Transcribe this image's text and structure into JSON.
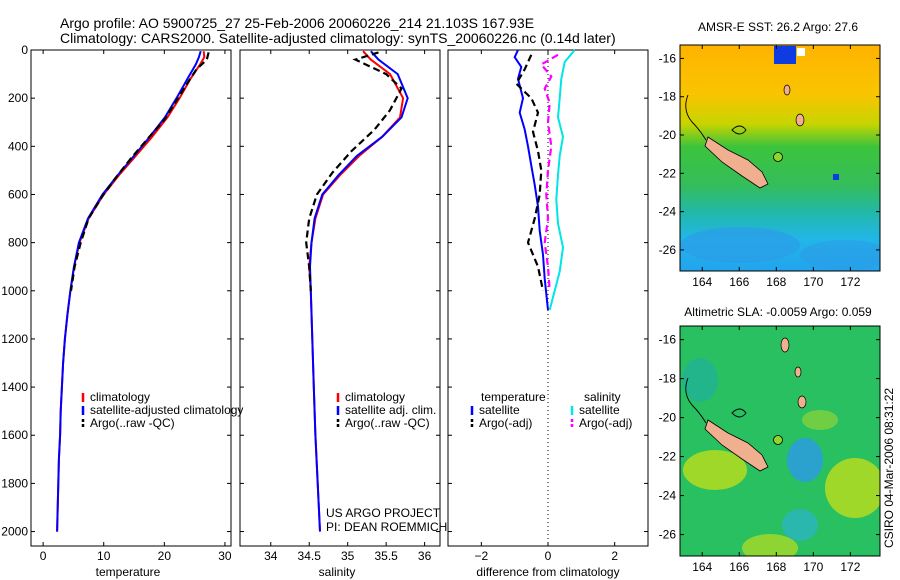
{
  "title": {
    "line1": "Argo profile: AO 5900725_27 25-Feb-2006 20060226_214 21.103S 167.93E",
    "line2": "Climatology: CARS2000. Satellite-adjusted climatology: synTS_20060226.nc (0.14d later)"
  },
  "credits": {
    "project": "US ARGO PROJECT",
    "pi": "PI: DEAN ROEMMICH"
  },
  "side_stamp": "CSIRO 04-Mar-2006 08:31:22",
  "chart_data": [
    {
      "type": "line",
      "id": "temperature",
      "xlabel": "temperature",
      "xlim": [
        -2,
        31
      ],
      "ylim": [
        2060,
        0
      ],
      "xticks": [
        0,
        10,
        20,
        30
      ],
      "yticks": [
        0,
        200,
        400,
        600,
        800,
        1000,
        1200,
        1400,
        1600,
        1800,
        2000
      ],
      "legend": [
        "climatology",
        "satellite-adjusted climatology",
        "Argo(..raw -QC)"
      ],
      "series": [
        {
          "name": "climatology",
          "color": "#ff0000",
          "style": "solid",
          "points": [
            [
              26.5,
              5
            ],
            [
              26.6,
              30
            ],
            [
              25.9,
              60
            ],
            [
              24.3,
              120
            ],
            [
              22.5,
              200
            ],
            [
              20.5,
              280
            ],
            [
              18.0,
              360
            ],
            [
              15.3,
              440
            ],
            [
              12.5,
              520
            ],
            [
              10.0,
              600
            ],
            [
              7.5,
              700
            ],
            [
              6.0,
              800
            ],
            [
              5.1,
              900
            ],
            [
              4.5,
              1000
            ],
            [
              4.0,
              1100
            ],
            [
              3.6,
              1200
            ],
            [
              3.3,
              1300
            ],
            [
              3.1,
              1400
            ],
            [
              2.9,
              1500
            ],
            [
              2.8,
              1600
            ],
            [
              2.6,
              1700
            ],
            [
              2.5,
              1800
            ],
            [
              2.4,
              1900
            ],
            [
              2.3,
              2000
            ]
          ]
        },
        {
          "name": "satellite-adjusted climatology",
          "color": "#0000ff",
          "style": "solid",
          "points": [
            [
              26.0,
              5
            ],
            [
              25.7,
              30
            ],
            [
              25.2,
              60
            ],
            [
              23.8,
              120
            ],
            [
              22.0,
              200
            ],
            [
              20.1,
              280
            ],
            [
              17.6,
              360
            ],
            [
              15.0,
              440
            ],
            [
              12.3,
              520
            ],
            [
              9.8,
              600
            ],
            [
              7.4,
              700
            ],
            [
              5.9,
              800
            ],
            [
              5.1,
              900
            ],
            [
              4.5,
              1000
            ],
            [
              4.0,
              1100
            ],
            [
              3.6,
              1200
            ],
            [
              3.3,
              1300
            ],
            [
              3.1,
              1400
            ],
            [
              2.9,
              1500
            ],
            [
              2.8,
              1600
            ],
            [
              2.6,
              1700
            ],
            [
              2.5,
              1800
            ],
            [
              2.4,
              1900
            ],
            [
              2.3,
              2000
            ]
          ]
        },
        {
          "name": "Argo(..raw -QC)",
          "color": "#000000",
          "style": "dash",
          "points": [
            [
              27.3,
              10
            ],
            [
              27.0,
              40
            ],
            [
              25.3,
              80
            ],
            [
              24.0,
              130
            ],
            [
              22.0,
              210
            ],
            [
              20.0,
              290
            ],
            [
              17.2,
              370
            ],
            [
              14.5,
              450
            ],
            [
              12.0,
              530
            ],
            [
              9.7,
              610
            ],
            [
              7.5,
              700
            ],
            [
              6.2,
              800
            ],
            [
              5.2,
              900
            ],
            [
              4.6,
              1000
            ]
          ]
        }
      ]
    },
    {
      "type": "line",
      "id": "salinity",
      "xlabel": "salinity",
      "xlim": [
        33.6,
        36.2
      ],
      "ylim": [
        2060,
        0
      ],
      "xticks": [
        34,
        34.5,
        35,
        35.5,
        36
      ],
      "xticklabels": [
        "34",
        "34.5",
        "35",
        "35.5",
        "36"
      ],
      "legend": [
        "climatology",
        "satellite adj. clim.",
        "Argo(..raw -QC)"
      ],
      "series": [
        {
          "name": "climatology",
          "color": "#ff0000",
          "style": "solid",
          "points": [
            [
              35.2,
              5
            ],
            [
              35.3,
              40
            ],
            [
              35.55,
              100
            ],
            [
              35.72,
              200
            ],
            [
              35.68,
              280
            ],
            [
              35.45,
              360
            ],
            [
              35.15,
              440
            ],
            [
              34.9,
              520
            ],
            [
              34.68,
              600
            ],
            [
              34.58,
              700
            ],
            [
              34.53,
              800
            ],
            [
              34.5,
              900
            ],
            [
              34.52,
              1000
            ],
            [
              34.54,
              1200
            ],
            [
              34.56,
              1400
            ],
            [
              34.58,
              1600
            ],
            [
              34.61,
              1800
            ],
            [
              34.64,
              2000
            ]
          ]
        },
        {
          "name": "satellite adj. clim.",
          "color": "#0000ff",
          "style": "solid",
          "points": [
            [
              35.3,
              5
            ],
            [
              35.4,
              40
            ],
            [
              35.65,
              100
            ],
            [
              35.78,
              200
            ],
            [
              35.7,
              280
            ],
            [
              35.45,
              360
            ],
            [
              35.12,
              440
            ],
            [
              34.88,
              520
            ],
            [
              34.67,
              600
            ],
            [
              34.57,
              700
            ],
            [
              34.53,
              800
            ],
            [
              34.51,
              900
            ],
            [
              34.52,
              1000
            ],
            [
              34.54,
              1200
            ],
            [
              34.56,
              1400
            ],
            [
              34.58,
              1600
            ],
            [
              34.61,
              1800
            ],
            [
              34.64,
              2000
            ]
          ]
        },
        {
          "name": "Argo(..raw -QC)",
          "color": "#000000",
          "style": "dash",
          "points": [
            [
              35.4,
              10
            ],
            [
              35.1,
              40
            ],
            [
              35.5,
              100
            ],
            [
              35.7,
              160
            ],
            [
              35.55,
              250
            ],
            [
              35.35,
              330
            ],
            [
              35.05,
              420
            ],
            [
              34.8,
              510
            ],
            [
              34.6,
              600
            ],
            [
              34.5,
              700
            ],
            [
              34.46,
              800
            ],
            [
              34.5,
              900
            ],
            [
              34.52,
              1000
            ]
          ]
        }
      ]
    },
    {
      "type": "line",
      "id": "difference",
      "xlabel": "difference from climatology",
      "xlim": [
        -3.0,
        3.0
      ],
      "ylim": [
        2060,
        0
      ],
      "xticks": [
        -2,
        0,
        2
      ],
      "xticklabels": [
        "−2",
        "0",
        "2"
      ],
      "legend_groups": [
        {
          "heading": "temperature",
          "items": [
            "satellite",
            "Argo(-adj)"
          ]
        },
        {
          "heading": "salinity",
          "items": [
            "satellite",
            "Argo(-adj)"
          ]
        }
      ],
      "series": [
        {
          "name": "temperature satellite",
          "color": "#0000ff",
          "style": "solid",
          "points": [
            [
              -0.9,
              0
            ],
            [
              -1.0,
              30
            ],
            [
              -0.8,
              70
            ],
            [
              -0.9,
              120
            ],
            [
              -0.75,
              200
            ],
            [
              -0.85,
              260
            ],
            [
              -0.7,
              330
            ],
            [
              -0.6,
              400
            ],
            [
              -0.5,
              480
            ],
            [
              -0.4,
              560
            ],
            [
              -0.3,
              650
            ],
            [
              -0.25,
              750
            ],
            [
              -0.15,
              850
            ],
            [
              -0.1,
              950
            ],
            [
              0.0,
              1080
            ]
          ]
        },
        {
          "name": "temperature Argo(-adj)",
          "color": "#000000",
          "style": "dash",
          "points": [
            [
              -0.5,
              20
            ],
            [
              -0.7,
              80
            ],
            [
              -0.95,
              140
            ],
            [
              -0.5,
              200
            ],
            [
              -0.3,
              260
            ],
            [
              -0.45,
              340
            ],
            [
              -0.3,
              420
            ],
            [
              -0.2,
              500
            ],
            [
              -0.25,
              600
            ],
            [
              -0.4,
              700
            ],
            [
              -0.6,
              800
            ],
            [
              -0.3,
              900
            ],
            [
              -0.15,
              1000
            ]
          ]
        },
        {
          "name": "salinity satellite",
          "color": "#00e5e5",
          "style": "solid",
          "points": [
            [
              0.8,
              0
            ],
            [
              0.5,
              50
            ],
            [
              0.4,
              120
            ],
            [
              0.35,
              200
            ],
            [
              0.3,
              280
            ],
            [
              0.45,
              360
            ],
            [
              0.35,
              440
            ],
            [
              0.3,
              520
            ],
            [
              0.25,
              620
            ],
            [
              0.3,
              720
            ],
            [
              0.45,
              820
            ],
            [
              0.35,
              920
            ],
            [
              0.2,
              1000
            ],
            [
              0.05,
              1080
            ]
          ]
        },
        {
          "name": "salinity Argo(-adj)",
          "color": "#ff00ff",
          "style": "dash",
          "points": [
            [
              0.3,
              20
            ],
            [
              -0.2,
              60
            ],
            [
              0.1,
              110
            ],
            [
              -0.1,
              160
            ],
            [
              0.05,
              220
            ],
            [
              0.0,
              300
            ],
            [
              0.1,
              400
            ],
            [
              0.0,
              500
            ],
            [
              -0.05,
              600
            ],
            [
              0.0,
              700
            ],
            [
              -0.1,
              800
            ],
            [
              0.0,
              900
            ],
            [
              0.05,
              1000
            ]
          ]
        }
      ]
    }
  ],
  "maps": [
    {
      "id": "sst",
      "title": "AMSR-E SST: 26.2 Argo: 27.6",
      "xticks": [
        164,
        166,
        168,
        170,
        172
      ],
      "yticks": [
        -16,
        -18,
        -20,
        -22,
        -24,
        -26
      ]
    },
    {
      "id": "sla",
      "title": "Altimetric SLA: -0.0059 Argo: 0.059",
      "xticks": [
        164,
        166,
        168,
        170,
        172
      ],
      "yticks": [
        -16,
        -18,
        -20,
        -22,
        -24,
        -26
      ]
    }
  ]
}
